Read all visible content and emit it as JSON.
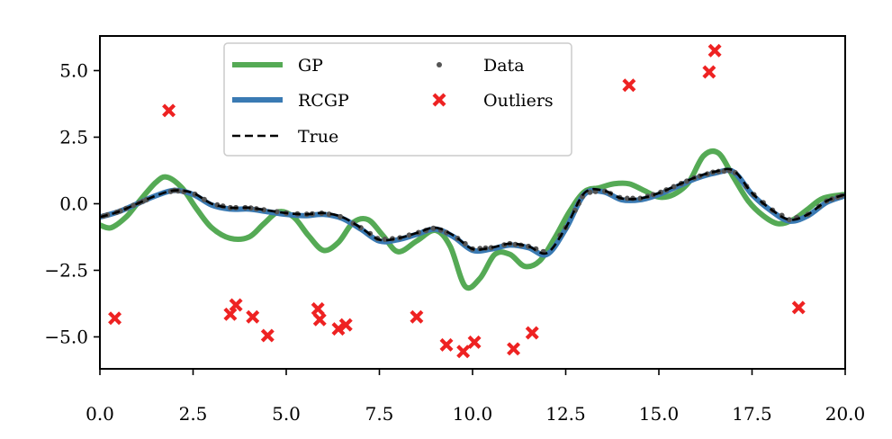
{
  "chart_data": {
    "type": "line",
    "xlim": [
      0,
      20
    ],
    "ylim": [
      -6.2,
      6.3
    ],
    "xticks": [
      0,
      2.5,
      5,
      7.5,
      10,
      12.5,
      15,
      17.5,
      20
    ],
    "xtick_labels": [
      "0.0",
      "2.5",
      "5.0",
      "7.5",
      "10.0",
      "12.5",
      "15.0",
      "17.5",
      "20.0"
    ],
    "yticks": [
      5,
      2.5,
      0,
      -2.5,
      -5
    ],
    "ytick_labels": [
      "5.0",
      "2.5",
      "0.0",
      "−2.5",
      "−5.0"
    ],
    "grid": false,
    "legend_position": "top-center",
    "legend": {
      "gp": "GP",
      "rcgp": "RCGP",
      "true": "True",
      "data": "Data",
      "outliers": "Outliers"
    },
    "colors": {
      "gp": "#55aa55",
      "rcgp": "#3a7ab3",
      "true": "#000000",
      "data": "#555555",
      "outliers": "#ee2222"
    },
    "true_curve": {
      "x": [
        0,
        0.5,
        1,
        1.5,
        2,
        2.5,
        3,
        3.5,
        4,
        4.5,
        5,
        5.5,
        6,
        6.5,
        7,
        7.5,
        8,
        8.5,
        9,
        9.5,
        10,
        10.5,
        11,
        11.5,
        12,
        12.5,
        13,
        13.5,
        14,
        14.5,
        15,
        15.5,
        16,
        16.5,
        17,
        17.5,
        18,
        18.5,
        19,
        19.5,
        20
      ],
      "y": [
        -0.5,
        -0.3,
        0.0,
        0.3,
        0.5,
        0.4,
        0.0,
        -0.15,
        -0.15,
        -0.25,
        -0.35,
        -0.4,
        -0.35,
        -0.5,
        -0.9,
        -1.35,
        -1.3,
        -1.1,
        -0.9,
        -1.2,
        -1.7,
        -1.65,
        -1.5,
        -1.6,
        -1.85,
        -0.9,
        0.4,
        0.5,
        0.2,
        0.2,
        0.4,
        0.7,
        1.0,
        1.2,
        1.25,
        0.4,
        -0.2,
        -0.6,
        -0.4,
        0.1,
        0.35
      ]
    },
    "gp_curve": {
      "x": [
        0,
        0.3,
        0.7,
        1.0,
        1.5,
        1.8,
        2.2,
        2.6,
        3.0,
        3.5,
        4.0,
        4.4,
        4.8,
        5.2,
        5.6,
        6.0,
        6.4,
        6.8,
        7.2,
        7.6,
        8.0,
        8.5,
        9.0,
        9.4,
        9.8,
        10.2,
        10.6,
        11.0,
        11.4,
        11.8,
        12.2,
        12.6,
        13.0,
        13.4,
        13.8,
        14.2,
        14.6,
        15.0,
        15.4,
        15.8,
        16.2,
        16.6,
        17.0,
        17.4,
        17.8,
        18.2,
        18.6,
        19.0,
        19.4,
        20.0
      ],
      "y": [
        -0.8,
        -0.9,
        -0.5,
        0.0,
        0.8,
        1.0,
        0.6,
        -0.2,
        -0.9,
        -1.3,
        -1.25,
        -0.75,
        -0.3,
        -0.5,
        -1.2,
        -1.75,
        -1.45,
        -0.7,
        -0.6,
        -1.2,
        -1.8,
        -1.4,
        -1.0,
        -1.6,
        -3.1,
        -2.8,
        -1.9,
        -1.9,
        -2.35,
        -2.15,
        -1.3,
        -0.3,
        0.45,
        0.6,
        0.75,
        0.75,
        0.5,
        0.25,
        0.35,
        0.8,
        1.8,
        1.9,
        1.0,
        0.1,
        -0.45,
        -0.75,
        -0.6,
        -0.2,
        0.2,
        0.35
      ]
    },
    "rcgp_curve": {
      "x": [
        0,
        0.5,
        1,
        1.5,
        2,
        2.5,
        3,
        3.5,
        4,
        4.5,
        5,
        5.5,
        6,
        6.5,
        7,
        7.5,
        8,
        8.5,
        9,
        9.5,
        10,
        10.5,
        11,
        11.5,
        12,
        12.5,
        13,
        13.5,
        14,
        14.5,
        15,
        15.5,
        16,
        16.5,
        17,
        17.5,
        18,
        18.5,
        19,
        19.5,
        20
      ],
      "y": [
        -0.5,
        -0.3,
        0.0,
        0.3,
        0.5,
        0.35,
        -0.05,
        -0.2,
        -0.2,
        -0.3,
        -0.4,
        -0.45,
        -0.4,
        -0.55,
        -0.95,
        -1.4,
        -1.35,
        -1.15,
        -0.95,
        -1.25,
        -1.75,
        -1.7,
        -1.55,
        -1.65,
        -1.9,
        -0.95,
        0.35,
        0.45,
        0.15,
        0.15,
        0.35,
        0.65,
        0.95,
        1.15,
        1.2,
        0.35,
        -0.25,
        -0.65,
        -0.45,
        0.05,
        0.3
      ]
    },
    "outliers": {
      "x": [
        0.4,
        1.85,
        3.5,
        3.65,
        4.1,
        4.5,
        5.85,
        5.9,
        6.4,
        6.6,
        8.5,
        9.3,
        9.75,
        10.05,
        11.1,
        11.6,
        14.2,
        16.35,
        16.5,
        18.75
      ],
      "y": [
        -4.3,
        3.5,
        -4.15,
        -3.8,
        -4.25,
        -4.95,
        -3.95,
        -4.35,
        -4.7,
        -4.55,
        -4.25,
        -5.3,
        -5.55,
        -5.2,
        -5.45,
        -4.85,
        4.45,
        4.95,
        5.75,
        -3.9
      ]
    },
    "data_points": {
      "x": [
        0.1,
        0.2,
        0.45,
        0.55,
        0.7,
        0.9,
        1.05,
        1.15,
        1.25,
        1.9,
        2.0,
        2.1,
        2.25,
        2.55,
        2.8,
        3.15,
        3.3,
        3.5,
        3.65,
        3.9,
        4.05,
        4.2,
        4.4,
        4.75,
        5.0,
        5.3,
        5.55,
        5.7,
        5.95,
        6.15,
        6.45,
        6.8,
        7.0,
        7.25,
        7.45,
        7.65,
        7.85,
        8.05,
        8.3,
        8.55,
        8.75,
        8.95,
        9.15,
        9.3,
        9.6,
        9.8,
        10.0,
        10.2,
        10.35,
        10.5,
        10.85,
        11.0,
        11.15,
        11.3,
        11.5,
        11.7,
        11.9,
        12.35,
        12.5,
        12.75,
        12.85,
        12.95,
        13.15,
        13.3,
        13.55,
        13.7,
        13.95,
        14.15,
        14.3,
        14.5,
        14.7,
        14.85,
        15.05,
        15.2,
        15.4,
        15.6,
        15.75,
        15.95,
        16.1,
        16.3,
        16.45,
        16.6,
        16.75,
        16.9,
        17.05,
        17.35,
        17.55,
        17.8,
        18.05,
        18.3,
        18.5,
        18.7,
        19.0,
        19.3,
        19.5,
        19.65,
        19.8,
        19.9
      ]
    }
  }
}
